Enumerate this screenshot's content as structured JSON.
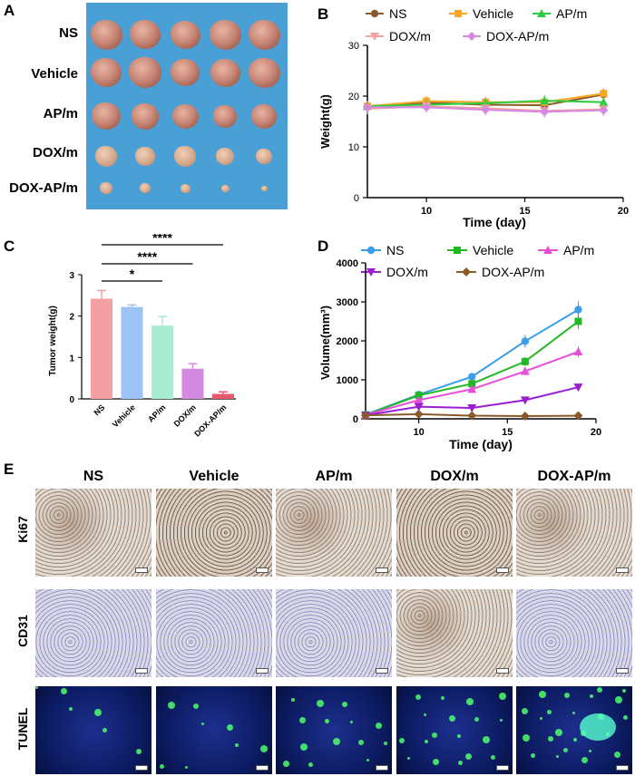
{
  "panels": {
    "A": "A",
    "B": "B",
    "C": "C",
    "D": "D",
    "E": "E"
  },
  "panelA": {
    "groups": [
      "NS",
      "Vehicle",
      "AP/m",
      "DOX/m",
      "DOX-AP/m"
    ]
  },
  "panelB": {
    "legend": [
      "NS",
      "Vehicle",
      "AP/m",
      "DOX/m",
      "DOX-AP/m"
    ],
    "ylabel": "Weight(g)",
    "xlabel": "Time (day)",
    "yticks": [
      "0",
      "10",
      "20",
      "30"
    ],
    "xticks": [
      "10",
      "15",
      "20"
    ]
  },
  "panelC": {
    "ylabel": "Tumor weight(g)",
    "categories": [
      "NS",
      "Vehicle",
      "AP/m",
      "DOX/m",
      "DOX-AP/m"
    ],
    "yticks": [
      "0",
      "1",
      "2",
      "3"
    ],
    "sig": [
      "*",
      "****",
      "****"
    ]
  },
  "panelD": {
    "legend": [
      "NS",
      "Vehicle",
      "AP/m",
      "DOX/m",
      "DOX-AP/m"
    ],
    "ylabel": "Volume(mm³)",
    "xlabel": "Time (day)",
    "yticks": [
      "0",
      "1000",
      "2000",
      "3000",
      "4000"
    ],
    "xticks": [
      "10",
      "15",
      "20"
    ]
  },
  "panelE": {
    "columns": [
      "NS",
      "Vehicle",
      "AP/m",
      "DOX/m",
      "DOX-AP/m"
    ],
    "rows": [
      "Ki67",
      "CD31",
      "TUNEL"
    ]
  },
  "colors": {
    "NS": "#8b5a2b",
    "Vehicle": "#f5a623",
    "APm": "#2ecc40",
    "DOXm": "#f4a0a0",
    "DOXAPm": "#d48ae0",
    "D_NS": "#3a9ee8",
    "D_Vehicle": "#22b822",
    "D_APm": "#e84fd8",
    "D_DOXm": "#9b1fd0",
    "D_DOXAPm": "#8b5a2b",
    "C_bars": [
      "#f4a0a0",
      "#9dc3f5",
      "#a8ecd2",
      "#d48ae0",
      "#e8586e"
    ]
  },
  "chart_data": [
    {
      "type": "line",
      "id": "B",
      "title": "",
      "xlabel": "Time (day)",
      "ylabel": "Weight(g)",
      "xlim": [
        7,
        20
      ],
      "ylim": [
        0,
        30
      ],
      "x": [
        7,
        10,
        13,
        16,
        19
      ],
      "series": [
        {
          "name": "NS",
          "values": [
            18.0,
            18.7,
            18.3,
            18.2,
            20.3
          ]
        },
        {
          "name": "Vehicle",
          "values": [
            18.0,
            19.0,
            18.8,
            18.8,
            20.5
          ]
        },
        {
          "name": "AP/m",
          "values": [
            18.0,
            18.3,
            18.6,
            19.1,
            18.8
          ]
        },
        {
          "name": "DOX/m",
          "values": [
            17.5,
            18.0,
            17.6,
            17.1,
            17.4
          ]
        },
        {
          "name": "DOX-AP/m",
          "values": [
            17.8,
            17.8,
            17.3,
            16.9,
            17.2
          ]
        }
      ]
    },
    {
      "type": "bar",
      "id": "C",
      "title": "",
      "ylabel": "Tumor weight(g)",
      "ylim": [
        0,
        3
      ],
      "categories": [
        "NS",
        "Vehicle",
        "AP/m",
        "DOX/m",
        "DOX-AP/m"
      ],
      "values": [
        2.42,
        2.22,
        1.77,
        0.73,
        0.12
      ],
      "errors": [
        0.2,
        0.05,
        0.22,
        0.12,
        0.05
      ],
      "annotations": [
        {
          "from": "NS",
          "to": "AP/m",
          "label": "*"
        },
        {
          "from": "NS",
          "to": "DOX/m",
          "label": "****"
        },
        {
          "from": "NS",
          "to": "DOX-AP/m",
          "label": "****"
        }
      ]
    },
    {
      "type": "line",
      "id": "D",
      "title": "",
      "xlabel": "Time (day)",
      "ylabel": "Volume(mm³)",
      "xlim": [
        7,
        20
      ],
      "ylim": [
        0,
        4000
      ],
      "x": [
        7,
        10,
        13,
        16,
        19
      ],
      "series": [
        {
          "name": "NS",
          "values": [
            110,
            620,
            1080,
            1990,
            2800
          ]
        },
        {
          "name": "Vehicle",
          "values": [
            100,
            600,
            900,
            1470,
            2500
          ]
        },
        {
          "name": "AP/m",
          "values": [
            100,
            480,
            760,
            1220,
            1720
          ]
        },
        {
          "name": "DOX/m",
          "values": [
            90,
            310,
            280,
            480,
            810
          ]
        },
        {
          "name": "DOX-AP/m",
          "values": [
            90,
            120,
            80,
            70,
            80
          ]
        }
      ]
    }
  ]
}
